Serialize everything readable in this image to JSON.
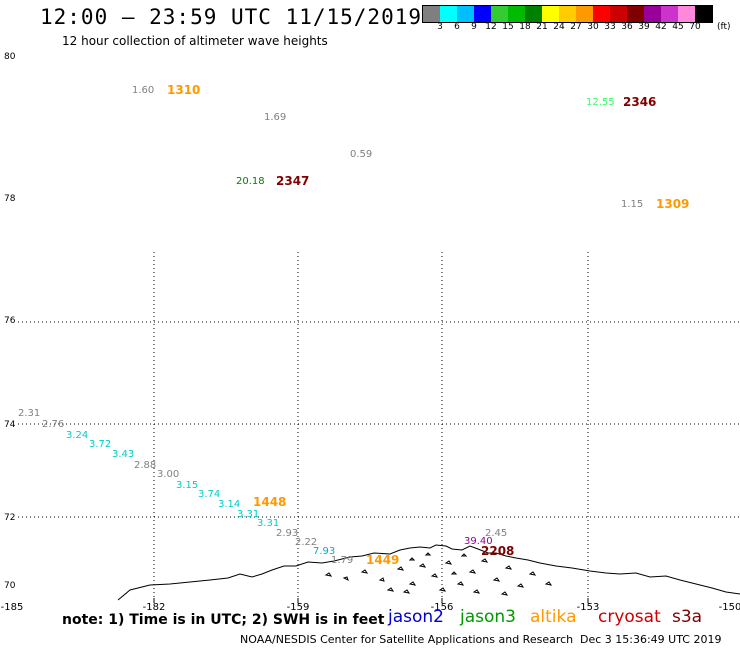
{
  "header": {
    "title": "12:00 – 23:59 UTC 11/15/2019",
    "subtitle": "12 hour collection of altimeter wave heights"
  },
  "colorbar": {
    "colors": [
      "#7f7f7f",
      "#00ffff",
      "#00bfff",
      "#0000ff",
      "#33cc33",
      "#00bb00",
      "#008000",
      "#ffff00",
      "#ffcc00",
      "#ff9900",
      "#ff0000",
      "#cc0000",
      "#800000",
      "#990099",
      "#cc33cc",
      "#ff88dd",
      "#000000"
    ],
    "labels": [
      "3",
      "6",
      "9",
      "12",
      "15",
      "18",
      "21",
      "24",
      "27",
      "30",
      "33",
      "36",
      "39",
      "42",
      "45",
      "70"
    ],
    "unit": "(ft)"
  },
  "axes": {
    "lat_labels": [
      "80",
      "78",
      "76",
      "74",
      "72",
      "70"
    ],
    "lon_labels": [
      "-185",
      "-182",
      "-159",
      "-156",
      "-153",
      "-150"
    ]
  },
  "observations": [
    {
      "text": "1.60",
      "color": "#808080"
    },
    {
      "text": "1310",
      "color": "#ff9900",
      "bold": true
    },
    {
      "text": "1.69",
      "color": "#808080"
    },
    {
      "text": "12.55",
      "color": "#33ff66"
    },
    {
      "text": "2346",
      "color": "#800000",
      "bold": true
    },
    {
      "text": "0.59",
      "color": "#808080"
    },
    {
      "text": "20.18",
      "color": "#008000"
    },
    {
      "text": "2347",
      "color": "#800000",
      "bold": true
    },
    {
      "text": "1.15",
      "color": "#808080"
    },
    {
      "text": "1309",
      "color": "#ff9900",
      "bold": true
    },
    {
      "text": "2.31",
      "color": "#808080"
    },
    {
      "text": "2.76",
      "color": "#808080"
    },
    {
      "text": "3.24",
      "color": "#00cccc"
    },
    {
      "text": "3.72",
      "color": "#00cccc"
    },
    {
      "text": "3.43",
      "color": "#00cccc"
    },
    {
      "text": "2.88",
      "color": "#808080"
    },
    {
      "text": "3.00",
      "color": "#808080"
    },
    {
      "text": "3.15",
      "color": "#00cccc"
    },
    {
      "text": "3.74",
      "color": "#00cccc"
    },
    {
      "text": "3.14",
      "color": "#00cccc"
    },
    {
      "text": "1448",
      "color": "#ff9900",
      "bold": true
    },
    {
      "text": "3.31",
      "color": "#00cccc"
    },
    {
      "text": "3.31",
      "color": "#00cccc"
    },
    {
      "text": "2.93",
      "color": "#808080"
    },
    {
      "text": "2.22",
      "color": "#808080"
    },
    {
      "text": "7.93",
      "color": "#00aacc"
    },
    {
      "text": "1.79",
      "color": "#808080"
    },
    {
      "text": "1449",
      "color": "#ff9900",
      "bold": true
    },
    {
      "text": "2.45",
      "color": "#808080"
    },
    {
      "text": "39.40",
      "color": "#990099"
    },
    {
      "text": "2208",
      "color": "#800000",
      "bold": true
    }
  ],
  "note": "note: 1) Time is in UTC; 2) SWH is in feet",
  "missions": [
    {
      "name": "jason2",
      "color": "#0000cc"
    },
    {
      "name": "jason3",
      "color": "#009900"
    },
    {
      "name": "altika",
      "color": "#ff9900"
    },
    {
      "name": "cryosat",
      "color": "#cc0000"
    },
    {
      "name": "s3a",
      "color": "#800000"
    }
  ],
  "footer": {
    "org": "NOAA/NESDIS Center for Satellite Applications and Research",
    "timestamp": "Dec  3 15:36:49 UTC 2019"
  }
}
